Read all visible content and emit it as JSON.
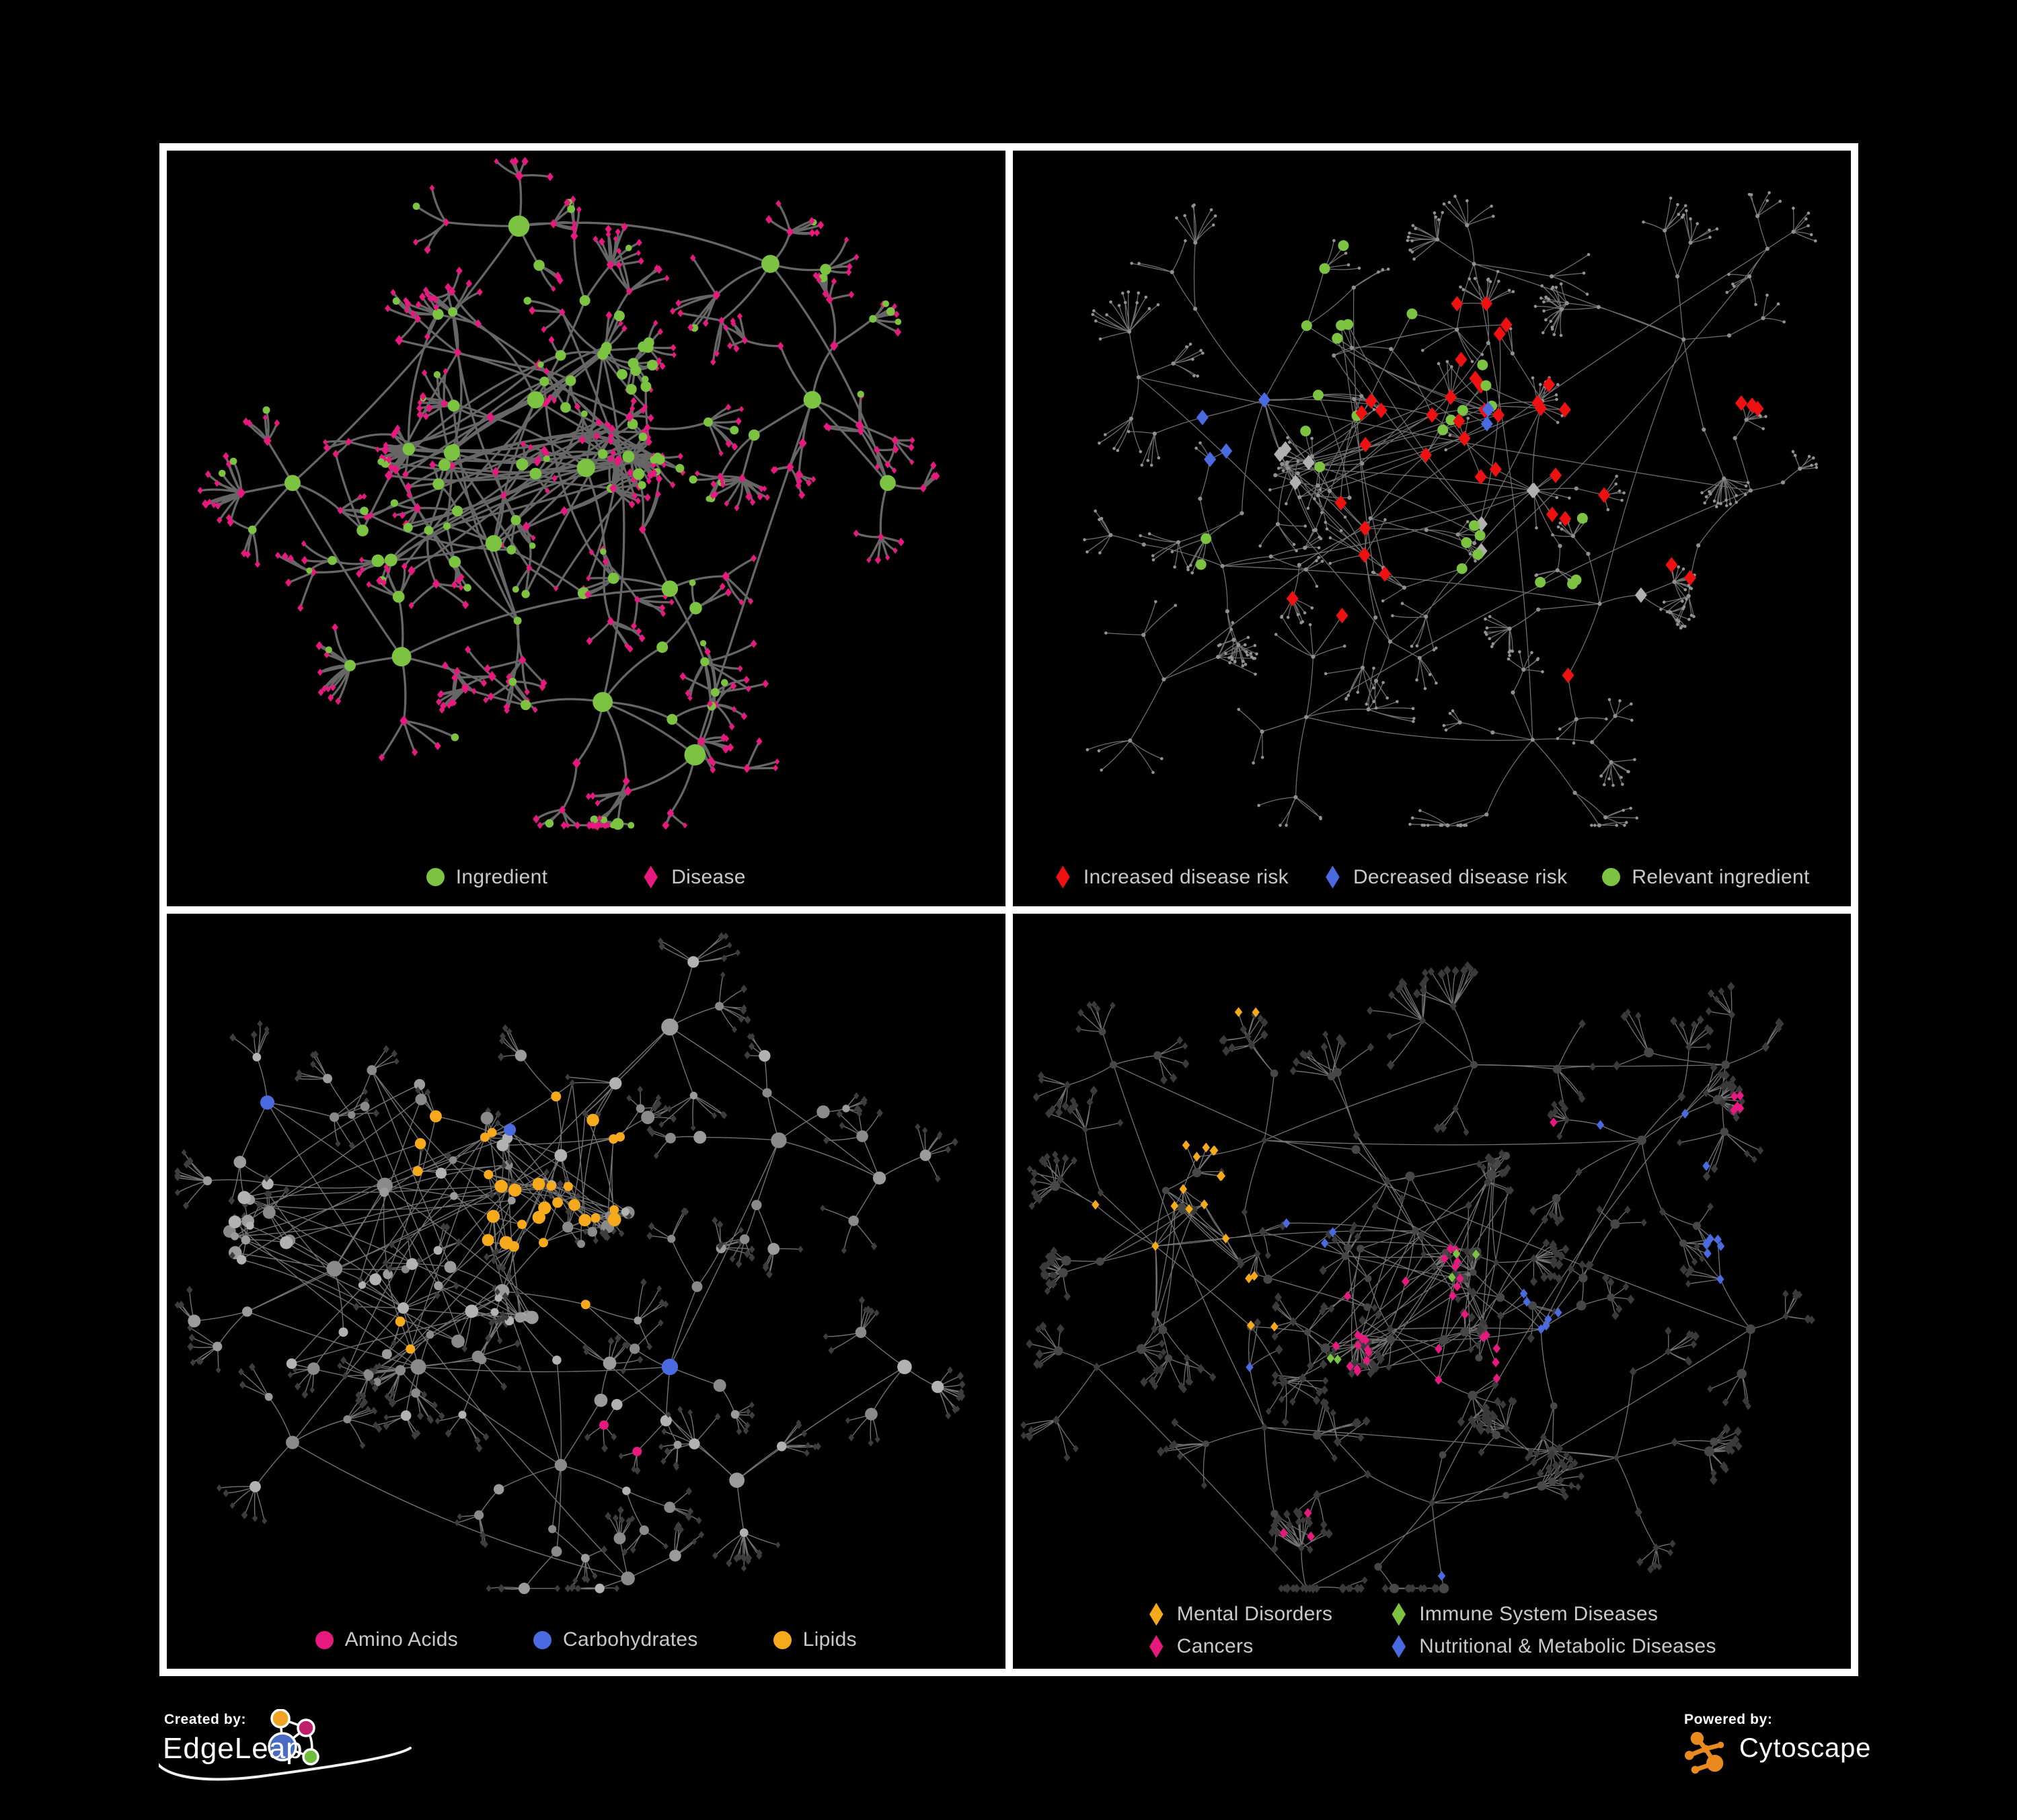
{
  "figure": {
    "background": "#000000",
    "frame_color": "#ffffff"
  },
  "colors": {
    "green": "#7CC342",
    "pink": "#E6197F",
    "red": "#EE1111",
    "blue": "#4A6BE0",
    "orange": "#F6A91B",
    "silver": "#B0B0B0",
    "legend_text": "#C9C9C9"
  },
  "panels": [
    {
      "id": "ingredient-disease",
      "legend_gap": 140,
      "legend": [
        {
          "label": "Ingredient",
          "shape": "circle",
          "color": "green"
        },
        {
          "label": "Disease",
          "shape": "diamond",
          "color": "pink"
        }
      ]
    },
    {
      "id": "disease-risk",
      "legend_gap": 52,
      "legend": [
        {
          "label": "Increased disease risk",
          "shape": "diamond",
          "color": "red"
        },
        {
          "label": "Decreased disease risk",
          "shape": "diamond",
          "color": "blue"
        },
        {
          "label": "Relevant ingredient",
          "shape": "circle",
          "color": "green"
        }
      ]
    },
    {
      "id": "nutrient-class",
      "legend_gap": 112,
      "legend": [
        {
          "label": "Amino Acids",
          "shape": "circle",
          "color": "pink"
        },
        {
          "label": "Carbohydrates",
          "shape": "circle",
          "color": "blue"
        },
        {
          "label": "Lipids",
          "shape": "circle",
          "color": "orange"
        }
      ]
    },
    {
      "id": "disease-category",
      "legend_columns": 2,
      "legend": [
        {
          "label": "Mental Disorders",
          "shape": "diamond",
          "color": "orange"
        },
        {
          "label": "Immune System Diseases",
          "shape": "diamond",
          "color": "green"
        },
        {
          "label": "Cancers",
          "shape": "diamond",
          "color": "pink"
        },
        {
          "label": "Nutritional & Metabolic Diseases",
          "shape": "diamond",
          "color": "blue"
        }
      ]
    }
  ],
  "footer": {
    "created_by_label": "Created by:",
    "created_by_brand": "EdgeLeap",
    "powered_by_label": "Powered by:",
    "powered_by_brand": "Cytoscape"
  }
}
